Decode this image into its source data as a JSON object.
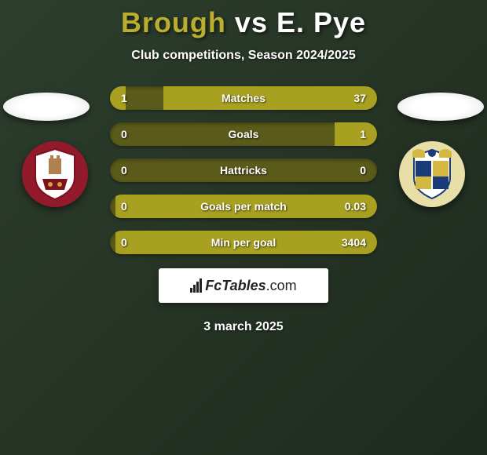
{
  "header": {
    "player_left_name": "Brough",
    "vs_text": "vs",
    "player_right_name": "E. Pye",
    "subtitle": "Club competitions, Season 2024/2025",
    "player_left_color": "#b9ae2e",
    "player_right_color": "#ffffff"
  },
  "crests": {
    "left_bg": "#931a2a",
    "right_bg": "#e8dfa8"
  },
  "stats": {
    "bar_bg": "#5a5a1a",
    "bar_fill": "#a8a020",
    "rows": [
      {
        "label": "Matches",
        "left": "1",
        "right": "37",
        "left_pct": 6,
        "right_pct": 80
      },
      {
        "label": "Goals",
        "left": "0",
        "right": "1",
        "left_pct": 0,
        "right_pct": 16
      },
      {
        "label": "Hattricks",
        "left": "0",
        "right": "0",
        "left_pct": 0,
        "right_pct": 0
      },
      {
        "label": "Goals per match",
        "left": "0",
        "right": "0.03",
        "left_pct": 0,
        "right_pct": 98
      },
      {
        "label": "Min per goal",
        "left": "0",
        "right": "3404",
        "left_pct": 0,
        "right_pct": 98
      }
    ]
  },
  "branding": {
    "logo_text_a": "Fc",
    "logo_text_b": "Tables",
    "logo_text_c": ".com"
  },
  "footer": {
    "date": "3 march 2025"
  }
}
